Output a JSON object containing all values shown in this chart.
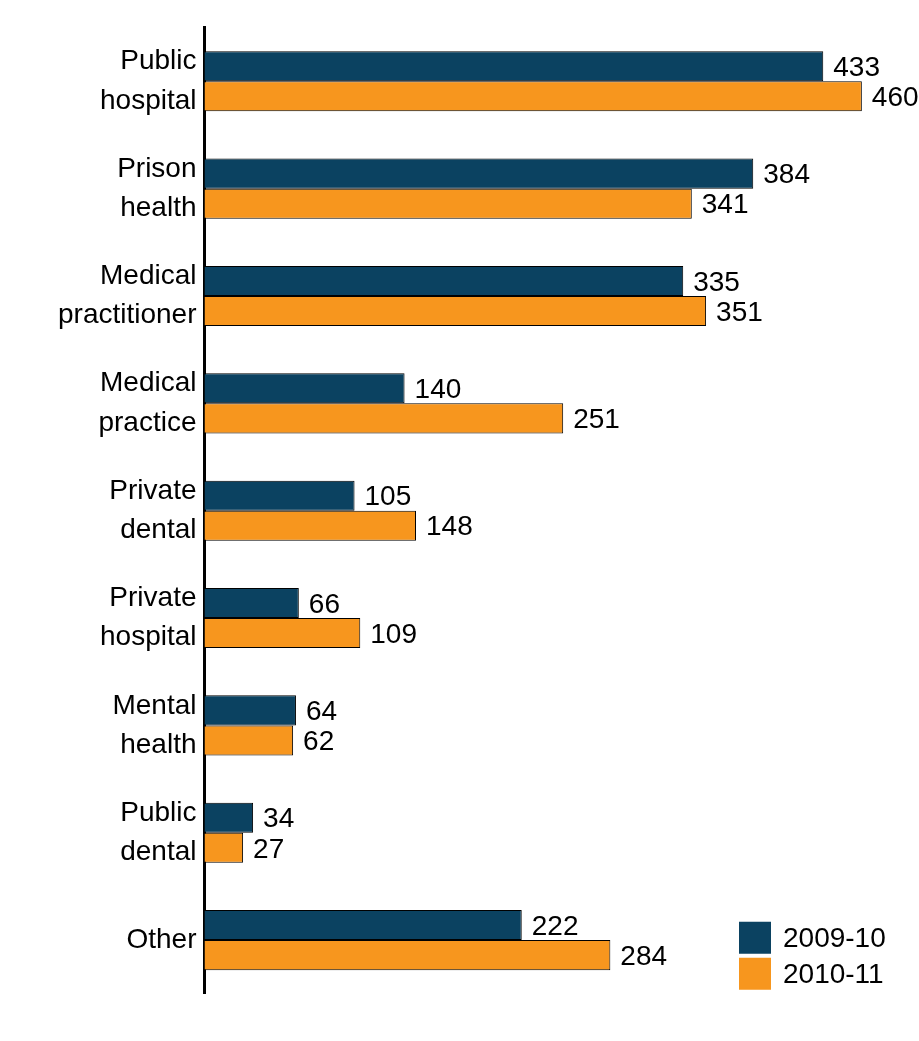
{
  "chart_data": {
    "type": "bar",
    "orientation": "horizontal",
    "categories": [
      "Public hospital",
      "Prison health",
      "Medical practitioner",
      "Medical practice",
      "Private dental",
      "Private hospital",
      "Mental health",
      "Public dental",
      "Other"
    ],
    "series": [
      {
        "name": "2009-10",
        "color": "#0b4261",
        "values": [
          433,
          384,
          335,
          140,
          105,
          66,
          64,
          34,
          222
        ]
      },
      {
        "name": "2010-11",
        "color": "#f7961e",
        "values": [
          460,
          341,
          351,
          251,
          148,
          109,
          62,
          27,
          284
        ]
      }
    ],
    "data_labels": true,
    "legend": "bottom right",
    "grid": false
  }
}
